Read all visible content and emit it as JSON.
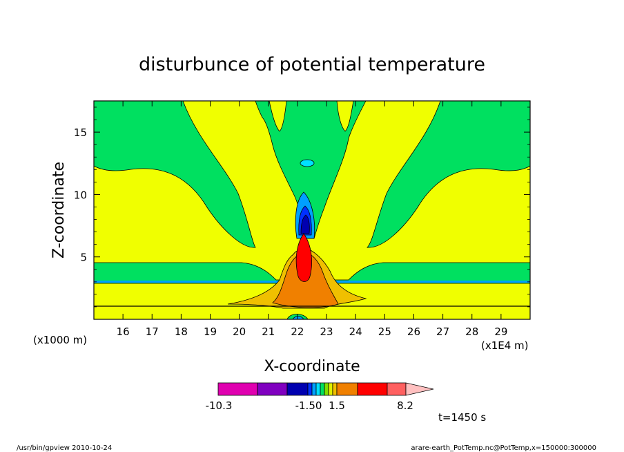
{
  "chart_data": {
    "type": "contour",
    "title": "disturbunce of potential temperature",
    "xlabel": "X-coordinate",
    "ylabel": "Z-coordinate",
    "x_unit": "(x1E4 m)",
    "y_unit": "(x1000 m)",
    "xlim": [
      15,
      30
    ],
    "ylim": [
      0,
      17.5
    ],
    "x_ticks": [
      "16",
      "17",
      "18",
      "19",
      "20",
      "21",
      "22",
      "23",
      "24",
      "25",
      "26",
      "27",
      "28",
      "29"
    ],
    "y_ticks": [
      "5",
      "10",
      "15"
    ],
    "colorbar": {
      "labels": [
        "-10.3",
        "-1.50",
        "1.5",
        "8.2"
      ],
      "colors": [
        "#e000b0",
        "#8000c0",
        "#0000b0",
        "#0030ff",
        "#00a0ff",
        "#00e0ff",
        "#00e060",
        "#80e000",
        "#e0f000",
        "#f0c000",
        "#f08000",
        "#ff0000",
        "#ff6060",
        "#ffc0c0"
      ]
    },
    "time_label": "t=1450 s",
    "footer_left": "/usr/bin/gpview   2010-10-24",
    "footer_right": "arare-earth_PotTemp.nc@PotTemp,x=150000:300000"
  },
  "colors": {
    "background": "#f0ff00",
    "green": "#00e060",
    "orange": "#f08000",
    "red": "#ff0000",
    "cyan": "#00e0ff",
    "blue": "#0000b0"
  }
}
